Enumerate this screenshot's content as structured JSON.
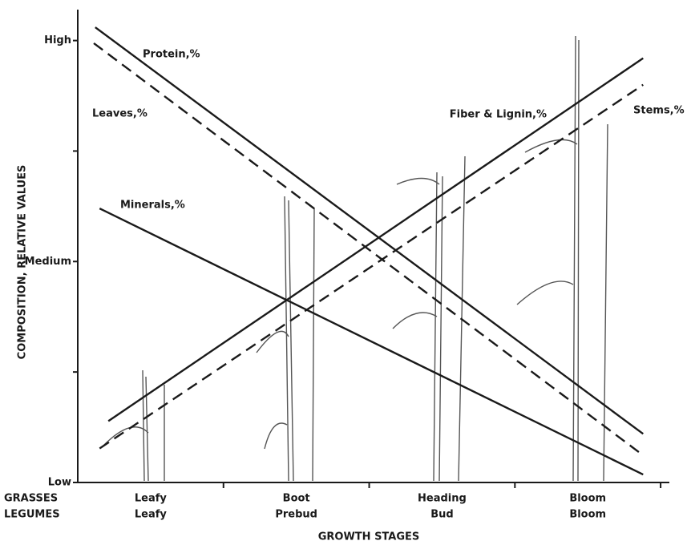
{
  "chart_data": {
    "type": "line",
    "y_label": "COMPOSITION, RELATIVE VALUES",
    "x_label": "GROWTH STAGES",
    "row_headers": [
      "GRASSES",
      "LEGUMES"
    ],
    "categories": [
      [
        "Leafy",
        "Leafy"
      ],
      [
        "Boot",
        "Prebud"
      ],
      [
        "Heading",
        "Bud"
      ],
      [
        "Bloom",
        "Bloom"
      ]
    ],
    "ylim": [
      0,
      107
    ],
    "yticks": [
      {
        "value": 0,
        "label": "Low"
      },
      {
        "value": 50,
        "label": "Medium"
      },
      {
        "value": 100,
        "label": "High"
      }
    ],
    "yminor": [
      25,
      75
    ],
    "xlim": [
      0,
      4.06
    ],
    "color": "#1a1a1a",
    "series": [
      {
        "name": "Protein,%",
        "dashed": false,
        "x": [
          0.12,
          3.88
        ],
        "values": [
          103,
          11
        ]
      },
      {
        "name": "Leaves,%",
        "dashed": true,
        "x": [
          0.11,
          3.87
        ],
        "values": [
          99.4,
          6.4
        ]
      },
      {
        "name": "Minerals,%",
        "dashed": false,
        "x": [
          0.15,
          3.88
        ],
        "values": [
          62,
          1.8
        ]
      },
      {
        "name": "Fiber & Lignin,%",
        "dashed": false,
        "x": [
          0.21,
          3.88
        ],
        "values": [
          13.9,
          96
        ]
      },
      {
        "name": "Stems,%",
        "dashed": true,
        "x": [
          0.15,
          3.88
        ],
        "values": [
          7.7,
          90
        ]
      }
    ]
  }
}
